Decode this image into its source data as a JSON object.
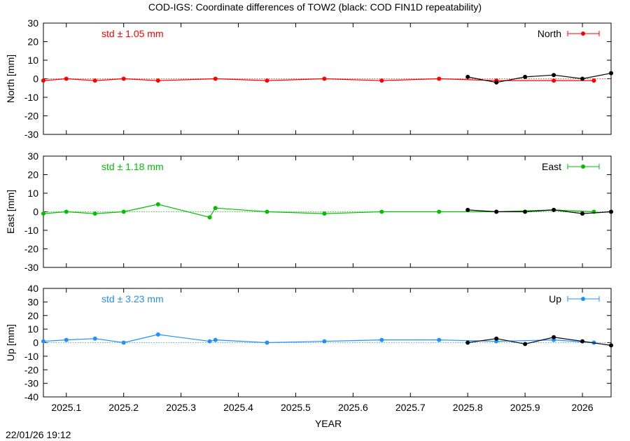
{
  "title": "COD-IGS: Coordinate differences of TOW2 (black: COD FIN1D repeatability)",
  "timestamp": "22/01/26 19:12",
  "colors": {
    "north": "#ff0000",
    "east": "#00c000",
    "up": "#1e90ff",
    "repeatability": "#000000"
  },
  "chart_data": [
    {
      "type": "line",
      "ylabel": "North [mm]",
      "ylim": [
        -30,
        30
      ],
      "yticks": [
        "30",
        "20",
        "10",
        "0",
        "-10",
        "-20",
        "-30"
      ],
      "std_label": "std ± 1.05 mm",
      "legend": "North",
      "series": [
        {
          "name": "North",
          "x": [
            2025.06,
            2025.1,
            2025.15,
            2025.2,
            2025.26,
            2025.36,
            2025.45,
            2025.55,
            2025.65,
            2025.75,
            2025.85,
            2025.95,
            2026.02
          ],
          "values": [
            -1,
            0,
            -1,
            0,
            -1,
            0,
            -1,
            0,
            -1,
            0,
            -1,
            -1,
            -1
          ]
        },
        {
          "name": "COD FIN1D repeatability",
          "x": [
            2025.8,
            2025.85,
            2025.9,
            2025.95,
            2026.0,
            2026.05
          ],
          "values": [
            1,
            -2,
            1,
            2,
            0,
            3
          ]
        }
      ]
    },
    {
      "type": "line",
      "ylabel": "East [mm]",
      "ylim": [
        -30,
        30
      ],
      "yticks": [
        "30",
        "20",
        "10",
        "0",
        "-10",
        "-20",
        "-30"
      ],
      "std_label": "std ± 1.18 mm",
      "legend": "East",
      "series": [
        {
          "name": "East",
          "x": [
            2025.06,
            2025.1,
            2025.15,
            2025.2,
            2025.26,
            2025.35,
            2025.36,
            2025.45,
            2025.55,
            2025.65,
            2025.75,
            2025.85,
            2025.95,
            2026.02
          ],
          "values": [
            -1,
            0,
            -1,
            0,
            4,
            -3,
            2,
            0,
            -1,
            0,
            0,
            0,
            1,
            0
          ]
        },
        {
          "name": "COD FIN1D repeatability",
          "x": [
            2025.8,
            2025.85,
            2025.9,
            2025.95,
            2026.0,
            2026.05
          ],
          "values": [
            1,
            0,
            0,
            1,
            -1,
            0
          ]
        }
      ]
    },
    {
      "type": "line",
      "ylabel": "Up [mm]",
      "ylim": [
        -40,
        40
      ],
      "yticks": [
        "40",
        "30",
        "20",
        "10",
        "0",
        "-10",
        "-20",
        "-30",
        "-40"
      ],
      "std_label": "std ± 3.23 mm",
      "legend": "Up",
      "series": [
        {
          "name": "Up",
          "x": [
            2025.06,
            2025.1,
            2025.15,
            2025.2,
            2025.26,
            2025.35,
            2025.36,
            2025.45,
            2025.55,
            2025.65,
            2025.75,
            2025.85,
            2025.95,
            2026.02
          ],
          "values": [
            1,
            2,
            3,
            0,
            6,
            1,
            2,
            0,
            1,
            2,
            2,
            1,
            2,
            0
          ]
        },
        {
          "name": "COD FIN1D repeatability",
          "x": [
            2025.8,
            2025.85,
            2025.9,
            2025.95,
            2026.0,
            2026.05
          ],
          "values": [
            0,
            3,
            -1,
            4,
            1,
            -2
          ]
        }
      ]
    }
  ],
  "x_axis": {
    "label": "YEAR",
    "range": [
      2025.06,
      2026.05
    ],
    "ticks": [
      {
        "value": 2025.1,
        "label": "2025.1"
      },
      {
        "value": 2025.2,
        "label": "2025.2"
      },
      {
        "value": 2025.3,
        "label": "2025.3"
      },
      {
        "value": 2025.4,
        "label": "2025.4"
      },
      {
        "value": 2025.5,
        "label": "2025.5"
      },
      {
        "value": 2025.6,
        "label": "2025.6"
      },
      {
        "value": 2025.7,
        "label": "2025.7"
      },
      {
        "value": 2025.8,
        "label": "2025.8"
      },
      {
        "value": 2025.9,
        "label": "2025.9"
      },
      {
        "value": 2026.0,
        "label": "2026"
      }
    ]
  }
}
